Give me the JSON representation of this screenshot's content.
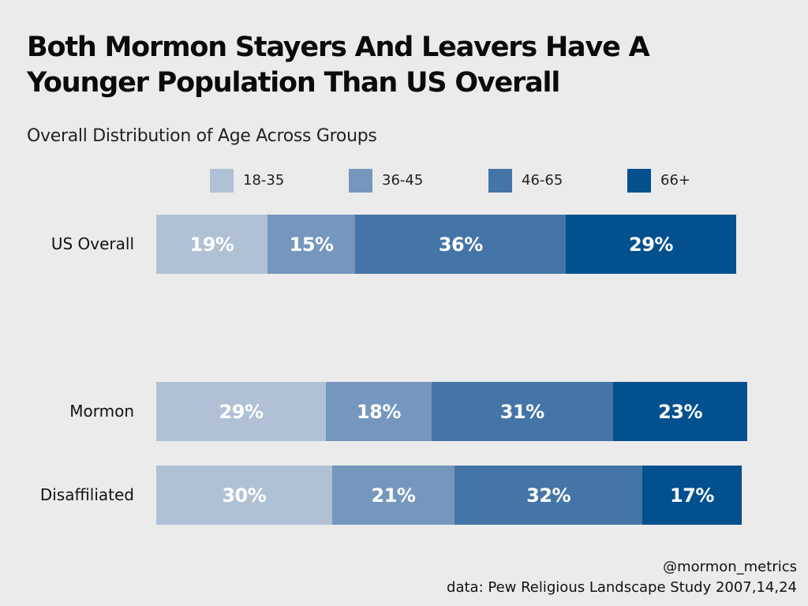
{
  "chart_data": {
    "type": "bar",
    "orientation": "horizontal",
    "stacked": true,
    "title": "Both Mormon Stayers And Leavers Have A Younger Population Than US Overall",
    "subtitle": "Overall Distribution of Age Across Groups",
    "categories": [
      "US Overall",
      "Mormon",
      "Disaffiliated"
    ],
    "series": [
      {
        "name": "18-35",
        "color": "#b0c1d5",
        "values": [
          19,
          29,
          30
        ],
        "labels": [
          "19%",
          "29%",
          "30%"
        ]
      },
      {
        "name": "36-45",
        "color": "#7597bd",
        "values": [
          15,
          18,
          21
        ],
        "labels": [
          "15%",
          "18%",
          "21%"
        ]
      },
      {
        "name": "46-65",
        "color": "#4575a7",
        "values": [
          36,
          31,
          32
        ],
        "labels": [
          "36%",
          "31%",
          "32%"
        ]
      },
      {
        "name": "66+",
        "color": "#03508f",
        "values": [
          29,
          23,
          17
        ],
        "labels": [
          "29%",
          "23%",
          "17%"
        ]
      }
    ],
    "legend_position": "top",
    "grid": false,
    "xlim": [
      0,
      100
    ]
  },
  "footer": {
    "handle": "@mormon_metrics",
    "source": "data: Pew Religious Landscape Study 2007,14,24"
  }
}
